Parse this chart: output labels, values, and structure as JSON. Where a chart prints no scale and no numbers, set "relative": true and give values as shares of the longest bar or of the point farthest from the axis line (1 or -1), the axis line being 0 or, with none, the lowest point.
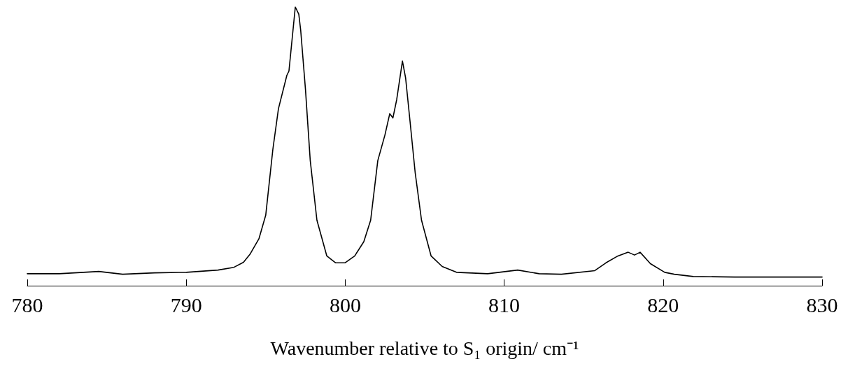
{
  "chart_data": {
    "type": "line",
    "relative": true,
    "xlabel": "Wavenumber relative to S₁ origin/ cm⁻¹",
    "xlim": [
      780,
      830
    ],
    "xticks": [
      780,
      790,
      800,
      810,
      820,
      830
    ],
    "grid": false,
    "marker": "none",
    "line_style": "solid",
    "x": [
      780,
      782,
      784.5,
      786,
      788,
      790,
      792,
      793,
      793.6,
      794.0,
      794.57,
      795.0,
      795.45,
      795.8,
      796.33,
      796.46,
      796.86,
      797.08,
      797.2,
      797.5,
      797.8,
      798.22,
      798.84,
      799.4,
      799.98,
      800.6,
      801.17,
      801.6,
      802.05,
      802.5,
      802.8,
      803.0,
      803.24,
      803.6,
      803.8,
      804.1,
      804.4,
      804.8,
      805.4,
      806.1,
      807.0,
      808.96,
      810.85,
      812.2,
      813.6,
      815.7,
      816.4,
      817.1,
      817.8,
      818.2,
      818.55,
      819.2,
      820.1,
      820.7,
      821.9,
      824.5,
      830
    ],
    "series": [
      {
        "color": "#000000",
        "values": [
          0.043,
          0.043,
          0.051,
          0.041,
          0.046,
          0.048,
          0.056,
          0.066,
          0.084,
          0.112,
          0.168,
          0.253,
          0.49,
          0.635,
          0.755,
          0.77,
          1.0,
          0.974,
          0.916,
          0.704,
          0.449,
          0.235,
          0.107,
          0.082,
          0.082,
          0.107,
          0.158,
          0.235,
          0.449,
          0.541,
          0.617,
          0.602,
          0.668,
          0.806,
          0.745,
          0.577,
          0.406,
          0.235,
          0.107,
          0.069,
          0.048,
          0.043,
          0.056,
          0.043,
          0.041,
          0.054,
          0.082,
          0.105,
          0.12,
          0.11,
          0.12,
          0.079,
          0.048,
          0.041,
          0.033,
          0.031,
          0.031
        ]
      }
    ]
  }
}
